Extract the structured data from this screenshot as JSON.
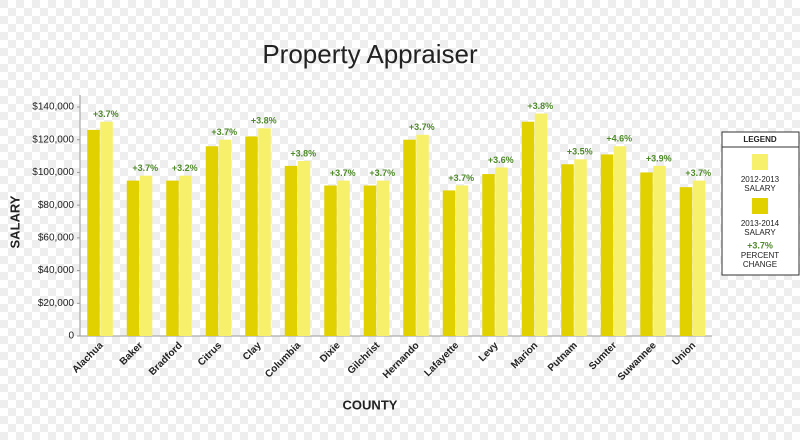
{
  "chart_data": {
    "type": "bar",
    "title": "Property Appraiser",
    "x_label": "COUNTY",
    "y_label": "SALARY",
    "categories": [
      "Alachua",
      "Baker",
      "Bradford",
      "Citrus",
      "Clay",
      "Columbia",
      "Dixie",
      "Gilchrist",
      "Hernando",
      "Lafayette",
      "Levy",
      "Marion",
      "Putnam",
      "Sumter",
      "Suwannee",
      "Union"
    ],
    "series": [
      {
        "name": "2013-2014 SALARY",
        "color": "#e2d100",
        "values": [
          126000,
          95000,
          95000,
          116000,
          122000,
          104000,
          92000,
          92000,
          120000,
          89000,
          99000,
          131000,
          105000,
          111000,
          100000,
          91000
        ]
      },
      {
        "name": "2012-2013 SALARY",
        "color": "#f7f06a",
        "values": [
          131000,
          98000,
          98000,
          120000,
          127000,
          107000,
          95000,
          95000,
          123000,
          92000,
          103000,
          136000,
          108000,
          116000,
          104000,
          95000
        ]
      },
      {
        "name": "PERCENT CHANGE",
        "color": "#4f8a2a",
        "values": [
          3.7,
          3.7,
          3.2,
          3.7,
          3.8,
          3.8,
          3.7,
          3.7,
          3.7,
          3.7,
          3.6,
          3.8,
          3.5,
          4.6,
          3.9,
          3.7
        ],
        "value_labels": [
          "+3.7%",
          "+3.7%",
          "+3.2%",
          "+3.7%",
          "+3.8%",
          "+3.8%",
          "+3.7%",
          "+3.7%",
          "+3.7%",
          "+3.7%",
          "+3.6%",
          "+3.8%",
          "+3.5%",
          "+4.6%",
          "+3.9%",
          "+3.7%"
        ]
      }
    ],
    "legend_title": "LEGEND",
    "legend_sample": "+3.7%",
    "ylim": [
      0,
      140000
    ],
    "yticks": [
      0,
      {
        "value": 20000,
        "label": "$20,000"
      },
      {
        "value": 40000,
        "label": "$40,000"
      },
      {
        "value": 60000,
        "label": "$60,000"
      },
      {
        "value": 80000,
        "label": "$80,000"
      },
      {
        "value": 100000,
        "label": "$100,000"
      },
      {
        "value": 120000,
        "label": "$120,000"
      },
      {
        "value": 140000,
        "label": "$140,000"
      }
    ],
    "legend_position": "right"
  }
}
